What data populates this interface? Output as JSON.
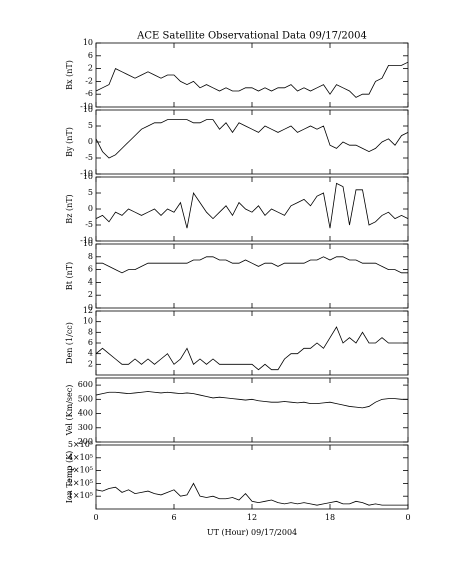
{
  "chart_data": [
    {
      "type": "line",
      "title": "ACE Satellite Observational Data   09/17/2004",
      "ylabel": "Bx (nT)",
      "color": "#000000",
      "x": [
        0,
        0.5,
        1,
        1.5,
        2,
        2.5,
        3,
        3.5,
        4,
        4.5,
        5,
        5.5,
        6,
        6.5,
        7,
        7.5,
        8,
        8.5,
        9,
        9.5,
        10,
        10.5,
        11,
        11.5,
        12,
        12.5,
        13,
        13.5,
        14,
        14.5,
        15,
        15.5,
        16,
        16.5,
        17,
        17.5,
        18,
        18.5,
        19,
        19.5,
        20,
        20.5,
        21,
        21.5,
        22,
        22.5,
        23,
        23.5,
        24
      ],
      "values": [
        -5,
        -4,
        -3,
        2,
        1,
        0,
        -1,
        0,
        1,
        0,
        -1,
        0,
        0,
        -2,
        -3,
        -2,
        -4,
        -3,
        -4,
        -5,
        -4,
        -5,
        -5,
        -4,
        -4,
        -5,
        -4,
        -5,
        -4,
        -4,
        -3,
        -5,
        -4,
        -5,
        -4,
        -3,
        -6,
        -3,
        -4,
        -5,
        -7,
        -6,
        -6,
        -2,
        -1,
        3,
        3,
        3,
        4
      ],
      "xlim": [
        0,
        24
      ],
      "ylim": [
        -10,
        10
      ],
      "yticks": [
        -10,
        -6,
        -2,
        2,
        6,
        10
      ]
    },
    {
      "type": "line",
      "ylabel": "By (nT)",
      "color": "#000000",
      "x": [
        0,
        0.5,
        1,
        1.5,
        2,
        2.5,
        3,
        3.5,
        4,
        4.5,
        5,
        5.5,
        6,
        6.5,
        7,
        7.5,
        8,
        8.5,
        9,
        9.5,
        10,
        10.5,
        11,
        11.5,
        12,
        12.5,
        13,
        13.5,
        14,
        14.5,
        15,
        15.5,
        16,
        16.5,
        17,
        17.5,
        18,
        18.5,
        19,
        19.5,
        20,
        20.5,
        21,
        21.5,
        22,
        22.5,
        23,
        23.5,
        24
      ],
      "values": [
        1,
        -3,
        -5,
        -4,
        -2,
        0,
        2,
        4,
        5,
        6,
        6,
        7,
        7,
        7,
        7,
        6,
        6,
        7,
        7,
        4,
        6,
        3,
        6,
        5,
        4,
        3,
        5,
        4,
        3,
        4,
        5,
        3,
        4,
        5,
        4,
        5,
        -1,
        -2,
        0,
        -1,
        -1,
        -2,
        -3,
        -2,
        0,
        1,
        -1,
        2,
        3
      ],
      "xlim": [
        0,
        24
      ],
      "ylim": [
        -10,
        10
      ],
      "yticks": [
        -10,
        -5,
        0,
        5,
        10
      ]
    },
    {
      "type": "line",
      "ylabel": "Bz (nT)",
      "color": "#000000",
      "x": [
        0,
        0.5,
        1,
        1.5,
        2,
        2.5,
        3,
        3.5,
        4,
        4.5,
        5,
        5.5,
        6,
        6.5,
        7,
        7.5,
        8,
        8.5,
        9,
        9.5,
        10,
        10.5,
        11,
        11.5,
        12,
        12.5,
        13,
        13.5,
        14,
        14.5,
        15,
        15.5,
        16,
        16.5,
        17,
        17.5,
        18,
        18.5,
        19,
        19.5,
        20,
        20.5,
        21,
        21.5,
        22,
        22.5,
        23,
        23.5,
        24
      ],
      "values": [
        -3,
        -2,
        -4,
        -1,
        -2,
        0,
        -1,
        -2,
        -1,
        0,
        -2,
        0,
        -1,
        2,
        -6,
        5,
        2,
        -1,
        -3,
        -1,
        1,
        -2,
        2,
        0,
        -1,
        1,
        -2,
        0,
        -1,
        -2,
        1,
        2,
        3,
        1,
        4,
        5,
        -6,
        8,
        7,
        -5,
        6,
        6,
        -5,
        -4,
        -2,
        -1,
        -3,
        -2,
        -3
      ],
      "xlim": [
        0,
        24
      ],
      "ylim": [
        -10,
        10
      ],
      "yticks": [
        -10,
        -5,
        0,
        5,
        10
      ]
    },
    {
      "type": "line",
      "ylabel": "Bt (nT)",
      "color": "#000000",
      "x": [
        0,
        0.5,
        1,
        1.5,
        2,
        2.5,
        3,
        3.5,
        4,
        4.5,
        5,
        5.5,
        6,
        6.5,
        7,
        7.5,
        8,
        8.5,
        9,
        9.5,
        10,
        10.5,
        11,
        11.5,
        12,
        12.5,
        13,
        13.5,
        14,
        14.5,
        15,
        15.5,
        16,
        16.5,
        17,
        17.5,
        18,
        18.5,
        19,
        19.5,
        20,
        20.5,
        21,
        21.5,
        22,
        22.5,
        23,
        23.5,
        24
      ],
      "values": [
        7,
        7,
        6.5,
        6,
        5.5,
        6,
        6,
        6.5,
        7,
        7,
        7,
        7,
        7,
        7,
        7,
        7.5,
        7.5,
        8,
        8,
        7.5,
        7.5,
        7,
        7,
        7.5,
        7,
        6.5,
        7,
        7,
        6.5,
        7,
        7,
        7,
        7,
        7.5,
        7.5,
        8,
        7.5,
        8,
        8,
        7.5,
        7.5,
        7,
        7,
        7,
        6.5,
        6,
        6,
        5.5,
        5.5
      ],
      "xlim": [
        0,
        24
      ],
      "ylim": [
        0,
        10
      ],
      "yticks": [
        0,
        2,
        4,
        6,
        8,
        10
      ]
    },
    {
      "type": "line",
      "ylabel": "Den (1/cc)",
      "color": "#000000",
      "x": [
        0,
        0.5,
        1,
        1.5,
        2,
        2.5,
        3,
        3.5,
        4,
        4.5,
        5,
        5.5,
        6,
        6.5,
        7,
        7.5,
        8,
        8.5,
        9,
        9.5,
        10,
        10.5,
        11,
        11.5,
        12,
        12.5,
        13,
        13.5,
        14,
        14.5,
        15,
        15.5,
        16,
        16.5,
        17,
        17.5,
        18,
        18.5,
        19,
        19.5,
        20,
        20.5,
        21,
        21.5,
        22,
        22.5,
        23,
        23.5,
        24
      ],
      "values": [
        4,
        5,
        4,
        3,
        2,
        2,
        3,
        2,
        3,
        2,
        3,
        4,
        2,
        3,
        5,
        2,
        3,
        2,
        3,
        2,
        2,
        2,
        2,
        2,
        2,
        1,
        2,
        1,
        1,
        3,
        4,
        4,
        5,
        5,
        6,
        5,
        7,
        9,
        6,
        7,
        6,
        8,
        6,
        6,
        7,
        6,
        6,
        6,
        6
      ],
      "xlim": [
        0,
        24
      ],
      "ylim": [
        0,
        12
      ],
      "yticks": [
        2,
        4,
        6,
        8,
        10,
        12
      ]
    },
    {
      "type": "line",
      "ylabel": "Vel (Km/sec)",
      "color": "#000000",
      "x": [
        0,
        0.5,
        1,
        1.5,
        2,
        2.5,
        3,
        3.5,
        4,
        4.5,
        5,
        5.5,
        6,
        6.5,
        7,
        7.5,
        8,
        8.5,
        9,
        9.5,
        10,
        10.5,
        11,
        11.5,
        12,
        12.5,
        13,
        13.5,
        14,
        14.5,
        15,
        15.5,
        16,
        16.5,
        17,
        17.5,
        18,
        18.5,
        19,
        19.5,
        20,
        20.5,
        21,
        21.5,
        22,
        22.5,
        23,
        23.5,
        24
      ],
      "values": [
        530,
        540,
        550,
        550,
        545,
        540,
        545,
        550,
        555,
        550,
        545,
        550,
        545,
        540,
        545,
        540,
        530,
        520,
        510,
        515,
        510,
        505,
        500,
        495,
        500,
        490,
        485,
        480,
        480,
        485,
        480,
        475,
        480,
        470,
        470,
        475,
        480,
        470,
        460,
        450,
        445,
        440,
        450,
        480,
        500,
        505,
        505,
        500,
        500
      ],
      "xlim": [
        0,
        24
      ],
      "ylim": [
        200,
        650
      ],
      "yticks": [
        200,
        300,
        400,
        500,
        600
      ]
    },
    {
      "type": "line",
      "ylabel": "Ion Temp (K)",
      "color": "#000000",
      "xlabel": "UT (Hour)   09/17/2004",
      "x": [
        0,
        0.5,
        1,
        1.5,
        2,
        2.5,
        3,
        3.5,
        4,
        4.5,
        5,
        5.5,
        6,
        6.5,
        7,
        7.5,
        8,
        8.5,
        9,
        9.5,
        10,
        10.5,
        11,
        11.5,
        12,
        12.5,
        13,
        13.5,
        14,
        14.5,
        15,
        15.5,
        16,
        16.5,
        17,
        17.5,
        18,
        18.5,
        19,
        19.5,
        20,
        20.5,
        21,
        21.5,
        22,
        22.5,
        23,
        23.5,
        24
      ],
      "values": [
        150000,
        140000,
        160000,
        170000,
        130000,
        150000,
        120000,
        130000,
        140000,
        120000,
        110000,
        130000,
        150000,
        100000,
        110000,
        200000,
        100000,
        90000,
        100000,
        80000,
        80000,
        90000,
        70000,
        120000,
        60000,
        50000,
        60000,
        70000,
        50000,
        40000,
        50000,
        40000,
        50000,
        40000,
        30000,
        40000,
        50000,
        60000,
        40000,
        40000,
        60000,
        50000,
        30000,
        40000,
        30000,
        30000,
        30000,
        30000,
        30000
      ],
      "xlim": [
        0,
        24
      ],
      "ylim": [
        0,
        500000
      ],
      "yticks": [
        {
          "value": 100000,
          "label": "1×10⁵"
        },
        {
          "value": 200000,
          "label": "2×10⁵"
        },
        {
          "value": 300000,
          "label": "3×10⁵"
        },
        {
          "value": 400000,
          "label": "4×10⁵"
        },
        {
          "value": 500000,
          "label": "5×10⁵"
        }
      ],
      "xticks": [
        0,
        6,
        12,
        18,
        {
          "value": 24,
          "label": "0"
        }
      ]
    }
  ]
}
